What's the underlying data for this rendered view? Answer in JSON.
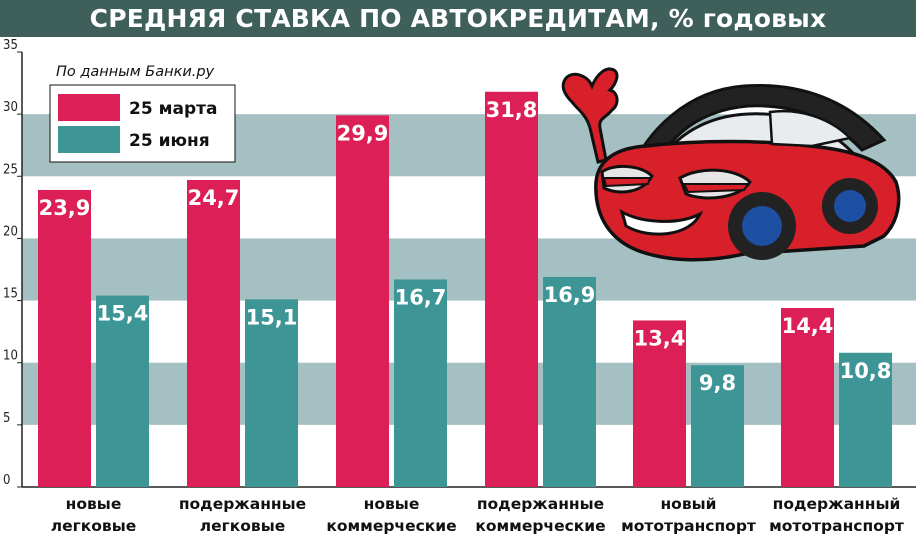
{
  "title": "СРЕДНЯЯ СТАВКА ПО АВТОКРЕДИТАМ, % годовых",
  "source": "По данным Банки.ру",
  "colors": {
    "series_1": "#dc1f56",
    "series_2": "#3d9596",
    "band": "#a5c0c3",
    "title_bg": "#3e5f5a"
  },
  "illustration": {
    "icon": "cartoon-red-car-icon"
  },
  "chart_data": {
    "type": "bar",
    "title": "СРЕДНЯЯ СТАВКА ПО АВТОКРЕДИТАМ, % годовых",
    "categories": [
      [
        "новые",
        "легковые"
      ],
      [
        "подержанные",
        "легковые"
      ],
      [
        "новые",
        "коммерческие"
      ],
      [
        "подержанные",
        "коммерческие"
      ],
      [
        "новый",
        "мототранспорт"
      ],
      [
        "подержанный",
        "мототранспорт"
      ]
    ],
    "series": [
      {
        "name": "25 марта",
        "values": [
          23.9,
          24.7,
          29.9,
          31.8,
          13.4,
          14.4
        ],
        "labels": [
          "23,9",
          "24,7",
          "29,9",
          "31,8",
          "13,4",
          "14,4"
        ]
      },
      {
        "name": "25 июня",
        "values": [
          15.4,
          15.1,
          16.7,
          16.9,
          9.8,
          10.8
        ],
        "labels": [
          "15,4",
          "15,1",
          "16,7",
          "16,9",
          "9,8",
          "10,8"
        ]
      }
    ],
    "yticks": [
      0,
      5,
      10,
      15,
      20,
      25,
      30,
      35
    ],
    "ylim": [
      0,
      35
    ],
    "xlabel": "",
    "ylabel": "",
    "grid": "alternating horizontal bands",
    "legend_position": "top-left"
  }
}
